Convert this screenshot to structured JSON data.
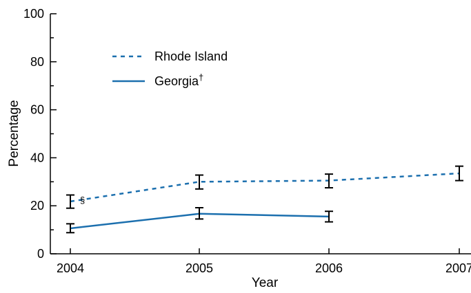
{
  "chart_data": {
    "type": "line",
    "title": "",
    "xlabel": "Year",
    "ylabel": "Percentage",
    "x": [
      "2004",
      "2005",
      "2006",
      "2007"
    ],
    "ylim": [
      0,
      100
    ],
    "yticks": [
      "0",
      "20",
      "40",
      "60",
      "80",
      "100"
    ],
    "grid": false,
    "legend_position": "top-left",
    "series": [
      {
        "name": "Rhode Island",
        "label_suffix": "",
        "style": "dashed",
        "color": "#1b6fae",
        "values": [
          21.8,
          30.0,
          30.5,
          33.5
        ],
        "ci_low": [
          19.0,
          27.0,
          27.5,
          30.5
        ],
        "ci_high": [
          24.5,
          32.8,
          33.2,
          36.5
        ]
      },
      {
        "name": "Georgia",
        "label_suffix": "†",
        "style": "solid",
        "color": "#1b6fae",
        "values": [
          10.6,
          16.7,
          15.5,
          null
        ],
        "ci_low": [
          8.8,
          14.5,
          13.3,
          null
        ],
        "ci_high": [
          12.5,
          19.2,
          17.7,
          null
        ]
      }
    ],
    "annotations": [
      {
        "text": "§",
        "x": "2004",
        "series": "Rhode Island"
      }
    ]
  }
}
